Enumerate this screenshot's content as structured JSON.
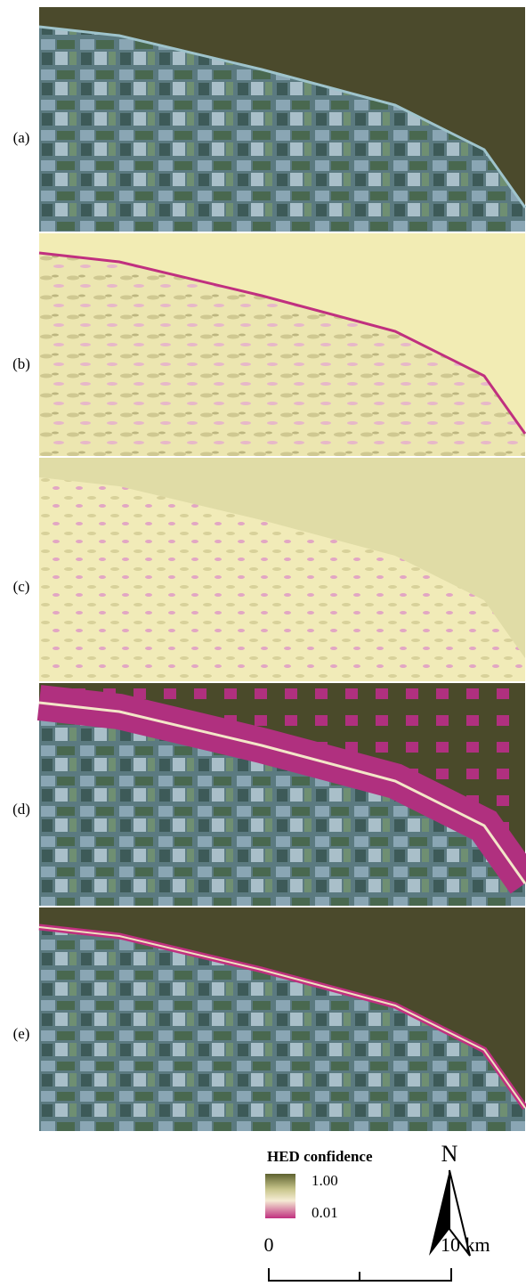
{
  "panels": [
    {
      "label": "(a)"
    },
    {
      "label": "(b)"
    },
    {
      "label": "(c)"
    },
    {
      "label": "(d)"
    },
    {
      "label": "(e)"
    }
  ],
  "legend": {
    "title": "HED confidence",
    "max_label": "1.00",
    "min_label": "0.01"
  },
  "north": "N",
  "scale_bar": {
    "start": "0",
    "end": "10 km"
  }
}
